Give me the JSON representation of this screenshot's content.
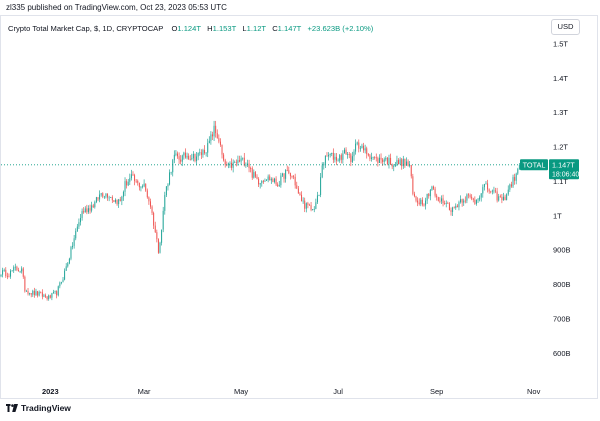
{
  "header": {
    "published": "zl335 published on TradingView.com, Oct 23, 2023 05:53 UTC"
  },
  "legend": {
    "title": "Crypto Total Market Cap, $, 1D, CRYPTOCAP",
    "o_label": "O",
    "o_value": "1.124T",
    "h_label": "H",
    "h_value": "1.153T",
    "l_label": "L",
    "l_value": "1.12T",
    "c_label": "C",
    "c_value": "1.147T",
    "change": "+23.623B (+2.10%)"
  },
  "currency": "USD",
  "footer": {
    "brand": "TradingView"
  },
  "colors": {
    "up": "#26a69a",
    "down": "#ef5350",
    "badge": "#089981",
    "axis_text": "#131722"
  },
  "chart_data": {
    "type": "candlestick",
    "title": "Crypto Total Market Cap, $, 1D, CRYPTOCAP",
    "ylim_billions": [
      515,
      1580
    ],
    "y_ticks": [
      {
        "value": 600,
        "label": "600B"
      },
      {
        "value": 700,
        "label": "700B"
      },
      {
        "value": 800,
        "label": "800B"
      },
      {
        "value": 900,
        "label": "900B"
      },
      {
        "value": 1000,
        "label": "1T"
      },
      {
        "value": 1100,
        "label": "1.1T"
      },
      {
        "value": 1200,
        "label": "1.2T"
      },
      {
        "value": 1300,
        "label": "1.3T"
      },
      {
        "value": 1400,
        "label": "1.4T"
      },
      {
        "value": 1500,
        "label": "1.5T"
      }
    ],
    "x_start": "2022-12-01",
    "x_end": "2023-11-10",
    "x_ticks": [
      {
        "date": "2023-01-01",
        "label": "2023",
        "bold": true
      },
      {
        "date": "2023-03-01",
        "label": "Mar"
      },
      {
        "date": "2023-05-01",
        "label": "May"
      },
      {
        "date": "2023-07-01",
        "label": "Jul"
      },
      {
        "date": "2023-09-01",
        "label": "Sep"
      },
      {
        "date": "2023-11-01",
        "label": "Nov"
      }
    ],
    "series_start": "2022-12-01",
    "series_end": "2023-10-23",
    "close_anchors": [
      [
        "2022-12-01",
        835
      ],
      [
        "2022-12-06",
        830
      ],
      [
        "2022-12-10",
        845
      ],
      [
        "2022-12-14",
        840
      ],
      [
        "2022-12-16",
        785
      ],
      [
        "2022-12-20",
        775
      ],
      [
        "2022-12-25",
        770
      ],
      [
        "2022-12-31",
        760
      ],
      [
        "2023-01-05",
        775
      ],
      [
        "2023-01-09",
        820
      ],
      [
        "2023-01-13",
        880
      ],
      [
        "2023-01-17",
        950
      ],
      [
        "2023-01-21",
        1010
      ],
      [
        "2023-01-25",
        1020
      ],
      [
        "2023-01-29",
        1035
      ],
      [
        "2023-02-02",
        1065
      ],
      [
        "2023-02-07",
        1060
      ],
      [
        "2023-02-10",
        1045
      ],
      [
        "2023-02-14",
        1040
      ],
      [
        "2023-02-17",
        1090
      ],
      [
        "2023-02-21",
        1110
      ],
      [
        "2023-02-25",
        1090
      ],
      [
        "2023-03-01",
        1085
      ],
      [
        "2023-03-05",
        1030
      ],
      [
        "2023-03-10",
        900
      ],
      [
        "2023-03-12",
        960
      ],
      [
        "2023-03-14",
        1060
      ],
      [
        "2023-03-17",
        1120
      ],
      [
        "2023-03-20",
        1170
      ],
      [
        "2023-03-24",
        1165
      ],
      [
        "2023-03-28",
        1175
      ],
      [
        "2023-04-02",
        1170
      ],
      [
        "2023-04-06",
        1180
      ],
      [
        "2023-04-10",
        1200
      ],
      [
        "2023-04-14",
        1250
      ],
      [
        "2023-04-17",
        1220
      ],
      [
        "2023-04-20",
        1150
      ],
      [
        "2023-04-23",
        1140
      ],
      [
        "2023-04-27",
        1150
      ],
      [
        "2023-05-01",
        1160
      ],
      [
        "2023-05-05",
        1155
      ],
      [
        "2023-05-08",
        1120
      ],
      [
        "2023-05-12",
        1100
      ],
      [
        "2023-05-16",
        1110
      ],
      [
        "2023-05-20",
        1105
      ],
      [
        "2023-05-24",
        1090
      ],
      [
        "2023-05-29",
        1125
      ],
      [
        "2023-06-03",
        1110
      ],
      [
        "2023-06-06",
        1060
      ],
      [
        "2023-06-10",
        1030
      ],
      [
        "2023-06-15",
        1015
      ],
      [
        "2023-06-19",
        1060
      ],
      [
        "2023-06-21",
        1150
      ],
      [
        "2023-06-25",
        1175
      ],
      [
        "2023-07-01",
        1165
      ],
      [
        "2023-07-06",
        1185
      ],
      [
        "2023-07-10",
        1160
      ],
      [
        "2023-07-13",
        1220
      ],
      [
        "2023-07-15",
        1195
      ],
      [
        "2023-07-20",
        1180
      ],
      [
        "2023-07-25",
        1160
      ],
      [
        "2023-07-30",
        1165
      ],
      [
        "2023-08-05",
        1150
      ],
      [
        "2023-08-10",
        1155
      ],
      [
        "2023-08-15",
        1145
      ],
      [
        "2023-08-17",
        1060
      ],
      [
        "2023-08-19",
        1045
      ],
      [
        "2023-08-24",
        1040
      ],
      [
        "2023-08-29",
        1085
      ],
      [
        "2023-09-01",
        1045
      ],
      [
        "2023-09-06",
        1040
      ],
      [
        "2023-09-11",
        1015
      ],
      [
        "2023-09-16",
        1045
      ],
      [
        "2023-09-20",
        1055
      ],
      [
        "2023-09-25",
        1040
      ],
      [
        "2023-10-01",
        1085
      ],
      [
        "2023-10-05",
        1070
      ],
      [
        "2023-10-10",
        1050
      ],
      [
        "2023-10-13",
        1045
      ],
      [
        "2023-10-16",
        1075
      ],
      [
        "2023-10-20",
        1110
      ],
      [
        "2023-10-22",
        1124
      ],
      [
        "2023-10-23",
        1147
      ]
    ],
    "last_price": {
      "value": 1147,
      "label": "TOTAL",
      "price_label": "1.147T",
      "countdown": "18:06:40"
    }
  }
}
